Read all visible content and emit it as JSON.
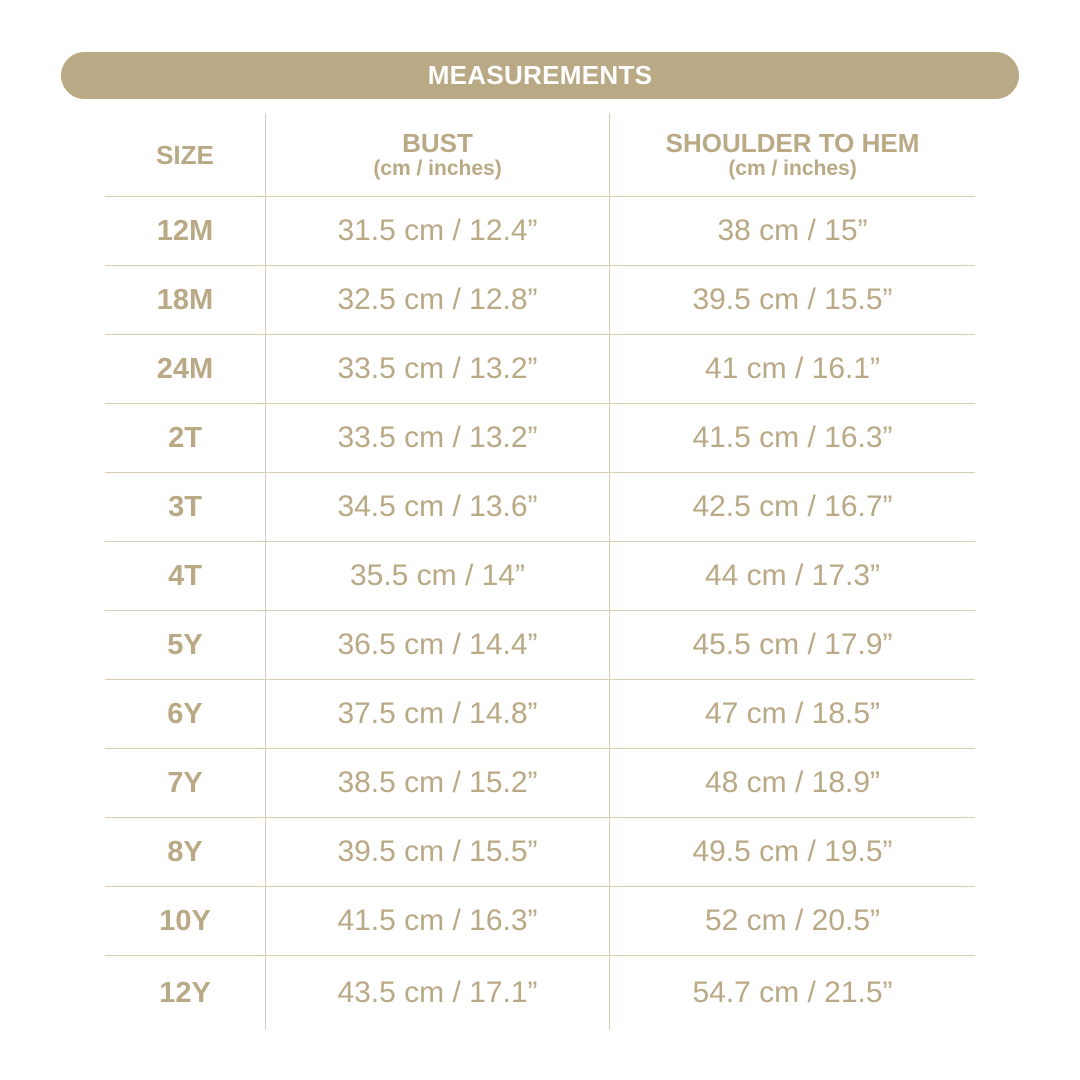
{
  "title": "MEASUREMENTS",
  "headers": {
    "size": "SIZE",
    "bust": "BUST",
    "bust_unit": "(cm / inches)",
    "length": "SHOULDER TO HEM",
    "length_unit": "(cm / inches)"
  },
  "rows": [
    {
      "size": "12M",
      "bust": "31.5 cm / 12.4”",
      "length": "38 cm / 15”"
    },
    {
      "size": "18M",
      "bust": "32.5 cm / 12.8”",
      "length": "39.5 cm / 15.5”"
    },
    {
      "size": "24M",
      "bust": "33.5 cm / 13.2”",
      "length": "41 cm / 16.1”"
    },
    {
      "size": "2T",
      "bust": "33.5 cm / 13.2”",
      "length": "41.5 cm / 16.3”"
    },
    {
      "size": "3T",
      "bust": "34.5 cm / 13.6”",
      "length": "42.5 cm / 16.7”"
    },
    {
      "size": "4T",
      "bust": "35.5 cm / 14”",
      "length": "44 cm / 17.3”"
    },
    {
      "size": "5Y",
      "bust": "36.5 cm / 14.4”",
      "length": "45.5 cm / 17.9”"
    },
    {
      "size": "6Y",
      "bust": "37.5 cm / 14.8”",
      "length": "47 cm / 18.5”"
    },
    {
      "size": "7Y",
      "bust": "38.5 cm / 15.2”",
      "length": "48 cm / 18.9”"
    },
    {
      "size": "8Y",
      "bust": "39.5 cm / 15.5”",
      "length": "49.5 cm / 19.5”"
    },
    {
      "size": "10Y",
      "bust": "41.5 cm / 16.3”",
      "length": "52 cm / 20.5”"
    },
    {
      "size": "12Y",
      "bust": "43.5 cm / 17.1”",
      "length": "54.7 cm / 21.5”"
    }
  ],
  "colors": {
    "accent": "#baa985",
    "divider": "#d8ccb2",
    "background": "#ffffff"
  }
}
